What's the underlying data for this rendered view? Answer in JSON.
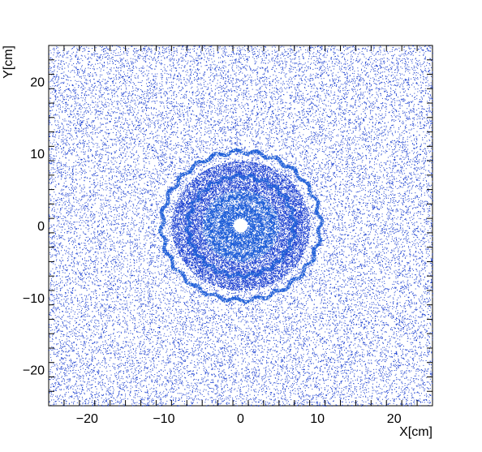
{
  "chart_data": {
    "type": "scatter",
    "title": "",
    "xlabel": "X[cm]",
    "ylabel": "Y[cm]",
    "xlim": [
      -25,
      25
    ],
    "ylim": [
      -25,
      25
    ],
    "x_ticks": [
      -20,
      -10,
      0,
      10,
      20
    ],
    "y_ticks": [
      -20,
      -10,
      0,
      10,
      20
    ],
    "x_tick_labels": [
      "−20",
      "−10",
      "0",
      "10",
      "20"
    ],
    "y_tick_labels": [
      "−20",
      "−10",
      "0",
      "10",
      "20"
    ],
    "grid": false,
    "legend": "none",
    "point_color": "#1a3fd0",
    "dense_color": "#1f5fd8",
    "features": [
      {
        "kind": "hole",
        "center": [
          0,
          0
        ],
        "radius": 0.9
      },
      {
        "kind": "ring",
        "center": [
          0,
          0
        ],
        "radius": 1.6,
        "width": 0.4
      },
      {
        "kind": "ring",
        "center": [
          0,
          0
        ],
        "radius": 2.6,
        "width": 0.4
      },
      {
        "kind": "ring",
        "center": [
          0,
          0
        ],
        "radius": 4.1,
        "width": 0.3
      },
      {
        "kind": "ring",
        "center": [
          0,
          0
        ],
        "radius": 6.9,
        "width": 0.5
      },
      {
        "kind": "ring",
        "center": [
          0,
          0
        ],
        "radius": 10.3,
        "width": 0.5
      },
      {
        "kind": "dense_disk",
        "center": [
          0,
          0
        ],
        "radius": 9.0
      },
      {
        "kind": "uniform_background",
        "range": [
          -25,
          25
        ]
      }
    ]
  }
}
